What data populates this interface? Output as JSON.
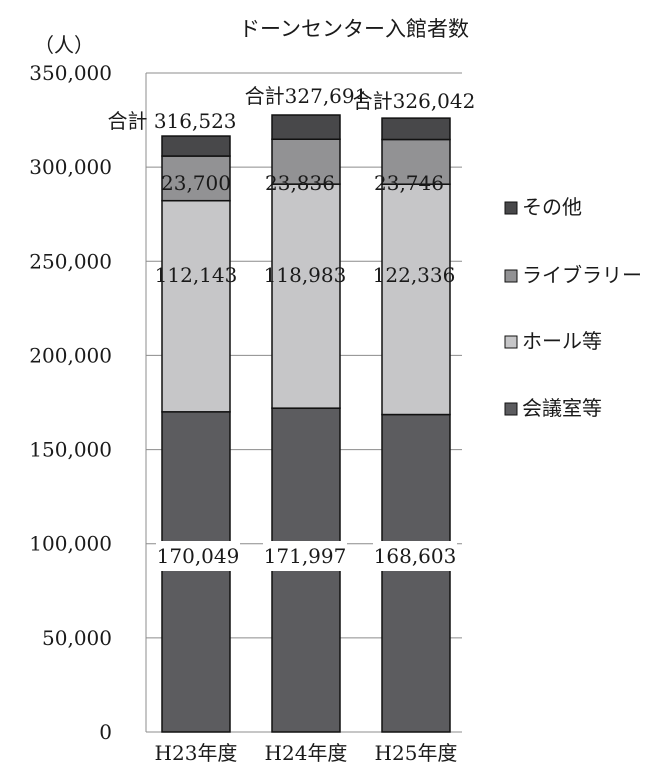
{
  "chart_data": {
    "type": "bar",
    "stacked": true,
    "title": "ドーンセンター入館者数",
    "ylabel": "（人）",
    "categories": [
      "H23年度",
      "H24年度",
      "H25年度"
    ],
    "ylim": [
      0,
      350000
    ],
    "yticks": [
      0,
      50000,
      100000,
      150000,
      200000,
      250000,
      300000,
      350000
    ],
    "tick_labels": [
      "0",
      "50,000",
      "100,000",
      "150,000",
      "200,000",
      "250,000",
      "300,000",
      "350,000"
    ],
    "grid": true,
    "legend_placement": "right",
    "series": [
      {
        "name": "会議室等",
        "color": "#5c5c5f",
        "values": [
          170049,
          171997,
          168603
        ],
        "labels": [
          "170,049",
          "171,997",
          "168,603"
        ]
      },
      {
        "name": "ホール等",
        "color": "#c6c6c8",
        "values": [
          112143,
          118983,
          122336
        ],
        "labels": [
          "112,143",
          "118,983",
          "122,336"
        ]
      },
      {
        "name": "ライブラリー",
        "color": "#929294",
        "values": [
          23700,
          23836,
          23746
        ],
        "labels": [
          "23,700",
          "23,836",
          "23,746"
        ]
      },
      {
        "name": "その他",
        "color": "#48484a",
        "values": [
          10631,
          12875,
          11357
        ],
        "labels": [
          "",
          "",
          ""
        ]
      }
    ],
    "totals": {
      "values": [
        316523,
        327691,
        326042
      ],
      "labels": [
        "合計 316,523",
        "合計327,691",
        "合計326,042"
      ]
    },
    "legend_order": [
      "その他",
      "ライブラリー",
      "ホール等",
      "会議室等"
    ]
  }
}
